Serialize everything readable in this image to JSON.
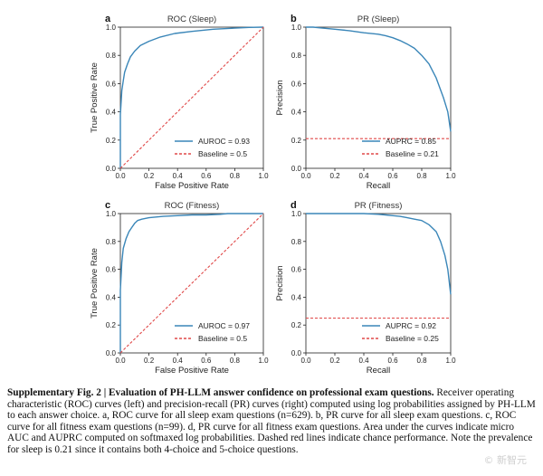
{
  "chart_data": [
    {
      "type": "line",
      "panel": "a",
      "title": "ROC (Sleep)",
      "xlabel": "False Positive Rate",
      "ylabel": "True Positive Rate",
      "xlim": [
        0,
        1
      ],
      "ylim": [
        0,
        1
      ],
      "xticks": [
        "0.0",
        "0.2",
        "0.4",
        "0.6",
        "0.8",
        "1.0"
      ],
      "yticks": [
        "0.0",
        "0.2",
        "0.4",
        "0.6",
        "0.8",
        "1.0"
      ],
      "legend_position": "bottom-right",
      "series": [
        {
          "name": "AUROC = 0.93",
          "color": "#3a86b8",
          "style": "solid",
          "x": [
            0,
            0,
            0.01,
            0.02,
            0.03,
            0.05,
            0.07,
            0.1,
            0.14,
            0.2,
            0.28,
            0.38,
            0.5,
            0.65,
            0.8,
            0.9,
            1.0
          ],
          "y": [
            0,
            0.38,
            0.55,
            0.62,
            0.68,
            0.74,
            0.79,
            0.83,
            0.87,
            0.9,
            0.93,
            0.955,
            0.97,
            0.985,
            0.993,
            0.998,
            1.0
          ]
        },
        {
          "name": "Baseline = 0.5",
          "color": "#e04848",
          "style": "dashed",
          "x": [
            0,
            1
          ],
          "y": [
            0,
            1
          ]
        }
      ]
    },
    {
      "type": "line",
      "panel": "b",
      "title": "PR (Sleep)",
      "xlabel": "Recall",
      "ylabel": "Precision",
      "xlim": [
        0,
        1
      ],
      "ylim": [
        0,
        1
      ],
      "xticks": [
        "0.0",
        "0.2",
        "0.4",
        "0.6",
        "0.8",
        "1.0"
      ],
      "yticks": [
        "0.0",
        "0.2",
        "0.4",
        "0.6",
        "0.8",
        "1.0"
      ],
      "legend_position": "bottom-right",
      "series": [
        {
          "name": "AUPRC = 0.85",
          "color": "#3a86b8",
          "style": "solid",
          "x": [
            0,
            0.05,
            0.1,
            0.2,
            0.3,
            0.4,
            0.5,
            0.55,
            0.6,
            0.65,
            0.7,
            0.75,
            0.8,
            0.85,
            0.9,
            0.95,
            0.98,
            1.0
          ],
          "y": [
            1.0,
            1.0,
            0.995,
            0.985,
            0.975,
            0.96,
            0.95,
            0.94,
            0.925,
            0.905,
            0.88,
            0.85,
            0.8,
            0.74,
            0.64,
            0.5,
            0.4,
            0.26
          ]
        },
        {
          "name": "Baseline = 0.21",
          "color": "#e04848",
          "style": "dashed",
          "x": [
            0,
            1
          ],
          "y": [
            0.21,
            0.21
          ]
        }
      ]
    },
    {
      "type": "line",
      "panel": "c",
      "title": "ROC (Fitness)",
      "xlabel": "False Positive Rate",
      "ylabel": "True Positive Rate",
      "xlim": [
        0,
        1
      ],
      "ylim": [
        0,
        1
      ],
      "xticks": [
        "0.0",
        "0.2",
        "0.4",
        "0.6",
        "0.8",
        "1.0"
      ],
      "yticks": [
        "0.0",
        "0.2",
        "0.4",
        "0.6",
        "0.8",
        "1.0"
      ],
      "legend_position": "bottom-right",
      "series": [
        {
          "name": "AUROC = 0.97",
          "color": "#3a86b8",
          "style": "solid",
          "x": [
            0,
            0,
            0.01,
            0.02,
            0.04,
            0.06,
            0.08,
            0.1,
            0.12,
            0.15,
            0.2,
            0.3,
            0.4,
            0.5,
            0.6,
            0.7,
            0.75,
            0.85,
            1.0
          ],
          "y": [
            0,
            0.45,
            0.65,
            0.75,
            0.82,
            0.87,
            0.9,
            0.93,
            0.95,
            0.96,
            0.97,
            0.98,
            0.985,
            0.99,
            0.99,
            0.995,
            1.0,
            1.0,
            1.0
          ]
        },
        {
          "name": "Baseline = 0.5",
          "color": "#e04848",
          "style": "dashed",
          "x": [
            0,
            1
          ],
          "y": [
            0,
            1
          ]
        }
      ]
    },
    {
      "type": "line",
      "panel": "d",
      "title": "PR (Fitness)",
      "xlabel": "Recall",
      "ylabel": "Precision",
      "xlim": [
        0,
        1
      ],
      "ylim": [
        0,
        1
      ],
      "xticks": [
        "0.0",
        "0.2",
        "0.4",
        "0.6",
        "0.8",
        "1.0"
      ],
      "yticks": [
        "0.0",
        "0.2",
        "0.4",
        "0.6",
        "0.8",
        "1.0"
      ],
      "legend_position": "bottom-right",
      "series": [
        {
          "name": "AUPRC = 0.92",
          "color": "#3a86b8",
          "style": "solid",
          "x": [
            0,
            0.1,
            0.2,
            0.3,
            0.4,
            0.5,
            0.55,
            0.6,
            0.65,
            0.7,
            0.75,
            0.8,
            0.85,
            0.9,
            0.93,
            0.96,
            0.98,
            1.0
          ],
          "y": [
            1.0,
            1.0,
            1.0,
            1.0,
            1.0,
            0.995,
            0.99,
            0.985,
            0.98,
            0.97,
            0.96,
            0.95,
            0.92,
            0.87,
            0.8,
            0.7,
            0.6,
            0.42
          ]
        },
        {
          "name": "Baseline = 0.25",
          "color": "#e04848",
          "style": "dashed",
          "x": [
            0,
            1
          ],
          "y": [
            0.25,
            0.25
          ]
        }
      ]
    }
  ],
  "caption": {
    "bold": "Supplementary Fig. 2 | Evaluation of PH-LLM answer confidence on professional exam questions.",
    "text": " Receiver operating characteristic (ROC) curves (left) and precision-recall (PR) curves (right) computed using log probabilities assigned by PH-LLM to each answer choice. a, ROC curve for all sleep exam questions (n=629). b, PR curve for all sleep exam questions. c, ROC curve for all fitness exam questions (n=99). d, PR curve for all fitness exam questions. Area under the curves indicate micro AUC and AUPRC computed on softmaxed log probabilities. Dashed red lines indicate chance performance. Note the prevalence for sleep is 0.21 since it contains both 4-choice and 5-choice questions."
  },
  "watermark": "© 新智元"
}
